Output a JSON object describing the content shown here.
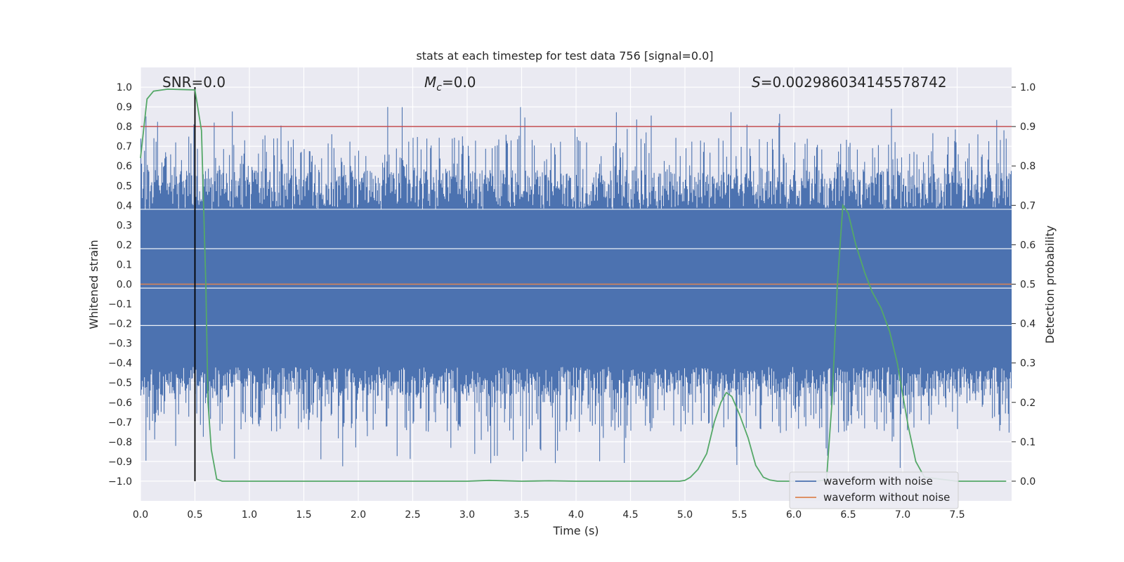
{
  "chart_data": {
    "type": "line",
    "title": "stats at each timestep for test data 756 [signal=0.0]",
    "xlabel": "Time (s)",
    "ylabel_left": "Whitened strain",
    "ylabel_right": "Detection probability",
    "xlim": [
      0.0,
      8.0
    ],
    "ylim_left": [
      -1.1,
      1.1
    ],
    "ylim_right": [
      -0.05,
      1.05
    ],
    "xticks": [
      "0.0",
      "0.5",
      "1.0",
      "1.5",
      "2.0",
      "2.5",
      "3.0",
      "3.5",
      "4.0",
      "4.5",
      "5.0",
      "5.5",
      "6.0",
      "6.5",
      "7.0",
      "7.5"
    ],
    "yticks_left": [
      "1.0",
      "0.9",
      "0.8",
      "0.7",
      "0.6",
      "0.5",
      "0.4",
      "0.3",
      "0.2",
      "0.1",
      "0.0",
      "−0.1",
      "−0.2",
      "−0.3",
      "−0.4",
      "−0.5",
      "−0.6",
      "−0.7",
      "−0.8",
      "−0.9",
      "−1.0"
    ],
    "yticks_right": [
      "1.0",
      "0.9",
      "0.8",
      "0.7",
      "0.6",
      "0.5",
      "0.4",
      "0.3",
      "0.2",
      "0.1",
      "0.0"
    ],
    "annotations": {
      "snr": "SNR=0.0",
      "mc": "=0.0",
      "mc_symbol": "M",
      "mc_sub": "c",
      "s": "=0.002986034145578742",
      "s_symbol": "S"
    },
    "threshold_right": 0.9,
    "marker_time": 0.5,
    "colors": {
      "noise": "#4c72b0",
      "clean": "#dd8452",
      "probability": "#55a868",
      "threshold": "#c44e52",
      "marker": "#000000",
      "background": "#eaeaf2",
      "grid": "#ffffff"
    },
    "series": [
      {
        "name": "waveform with noise",
        "axis": "left",
        "description_values": "dense noise approx -1.0 to 1.0"
      },
      {
        "name": "waveform without noise",
        "axis": "left",
        "x": [
          0.0,
          8.0
        ],
        "y": [
          0.0,
          0.0
        ]
      },
      {
        "name": "detection probability",
        "axis": "right",
        "x": [
          0.0,
          0.06,
          0.12,
          0.25,
          0.5,
          0.56,
          0.6,
          0.62,
          0.65,
          0.7,
          0.75,
          1.0,
          2.0,
          3.0,
          3.2,
          3.5,
          3.75,
          4.0,
          4.5,
          4.95,
          5.0,
          5.05,
          5.12,
          5.2,
          5.27,
          5.33,
          5.38,
          5.43,
          5.5,
          5.58,
          5.65,
          5.72,
          5.78,
          5.85,
          6.0,
          6.2,
          6.3,
          6.35,
          6.4,
          6.45,
          6.5,
          6.57,
          6.65,
          6.72,
          6.8,
          6.88,
          6.95,
          7.0,
          7.05,
          7.12,
          7.2,
          7.5,
          7.95
        ],
        "y": [
          0.82,
          0.97,
          0.99,
          0.995,
          0.993,
          0.89,
          0.5,
          0.2,
          0.08,
          0.005,
          0.0,
          0.0,
          0.0,
          0.0,
          0.002,
          0.0,
          0.001,
          0.0,
          0.0,
          0.0,
          0.002,
          0.01,
          0.03,
          0.07,
          0.15,
          0.2,
          0.225,
          0.215,
          0.17,
          0.11,
          0.04,
          0.01,
          0.003,
          0.0,
          0.0,
          0.0,
          0.003,
          0.2,
          0.5,
          0.7,
          0.68,
          0.6,
          0.53,
          0.48,
          0.44,
          0.38,
          0.3,
          0.22,
          0.14,
          0.05,
          0.01,
          0.0,
          0.0
        ]
      }
    ],
    "legend": [
      "waveform with noise",
      "waveform without noise"
    ],
    "legend_position": "bottom-right"
  }
}
